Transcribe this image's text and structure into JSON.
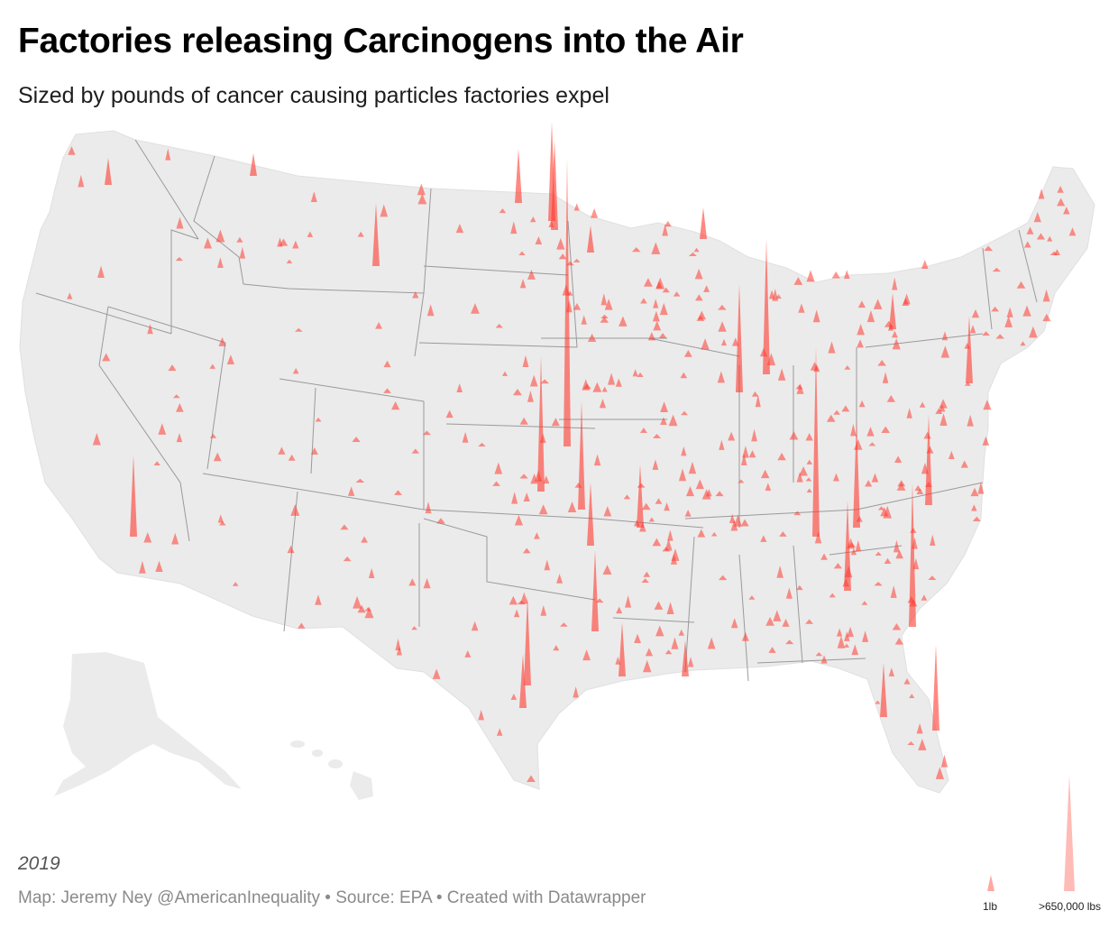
{
  "header": {
    "title": "Factories releasing Carcinogens into the Air",
    "subtitle": "Sized by pounds of cancer causing particles factories expel"
  },
  "footer": {
    "note": "2019",
    "credit_map": "Map: Jeremy Ney @AmericanInequality",
    "separator": " • ",
    "credit_source": "Source: EPA",
    "credit_tool": "Created with Datawrapper"
  },
  "legend": {
    "min_label": "1lb",
    "max_label": ">650,000 lbs",
    "min_value_lbs": 1,
    "max_value_lbs": 650000
  },
  "colors": {
    "land": "#ebebeb",
    "border": "#9a9a9a",
    "spike": "#ff3b2f",
    "spike_dark": "#cc1a10"
  }
}
